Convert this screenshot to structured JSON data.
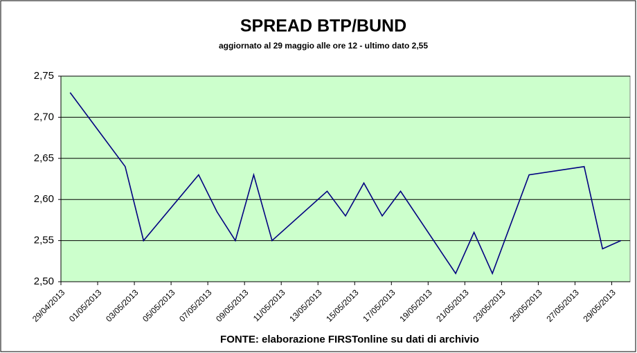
{
  "chart_data": {
    "type": "line",
    "title": "SPREAD  BTP/BUND",
    "subtitle": "aggiornato al 29 maggio alle ore 12 - ultimo dato 2,55",
    "source": "FONTE: elaborazione FIRSTonline su dati di archivio",
    "x": [
      "29/04/2013",
      "02/05/2013",
      "03/05/2013",
      "06/05/2013",
      "07/05/2013",
      "08/05/2013",
      "09/05/2013",
      "10/05/2013",
      "13/05/2013",
      "14/05/2013",
      "15/05/2013",
      "16/05/2013",
      "17/05/2013",
      "20/05/2013",
      "21/05/2013",
      "22/05/2013",
      "24/05/2013",
      "27/05/2013",
      "28/05/2013",
      "29/05/2013"
    ],
    "series": [
      {
        "color": "#000080",
        "values": [
          2.73,
          2.64,
          2.55,
          2.63,
          2.585,
          2.55,
          2.63,
          2.55,
          2.61,
          2.58,
          2.62,
          2.58,
          2.61,
          2.51,
          2.56,
          2.51,
          2.63,
          2.64,
          2.54,
          2.55
        ]
      }
    ],
    "xticks": [
      "29/04/2013",
      "01/05/2013",
      "03/05/2013",
      "05/05/2013",
      "07/05/2013",
      "09/05/2013",
      "11/05/2013",
      "13/05/2013",
      "15/05/2013",
      "17/05/2013",
      "19/05/2013",
      "21/05/2013",
      "23/05/2013",
      "25/05/2013",
      "27/05/2013",
      "29/05/2013"
    ],
    "ylim": [
      2.5,
      2.75
    ],
    "yticks": [
      {
        "value": 2.5,
        "label": "2,50"
      },
      {
        "value": 2.55,
        "label": "2,55"
      },
      {
        "value": 2.6,
        "label": "2,60"
      },
      {
        "value": 2.65,
        "label": "2,65"
      },
      {
        "value": 2.7,
        "label": "2,70"
      },
      {
        "value": 2.75,
        "label": "2,75"
      }
    ],
    "grid": true,
    "background": "#ccffcc"
  }
}
